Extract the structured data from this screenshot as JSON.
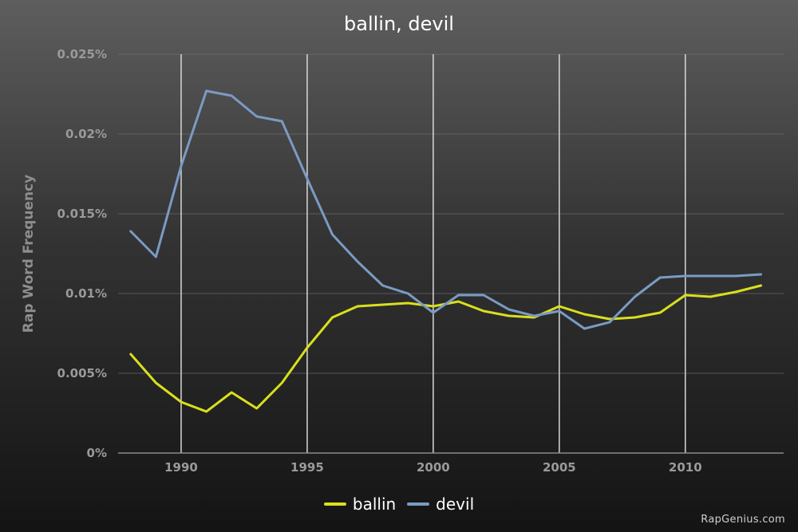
{
  "chart_data": {
    "type": "line",
    "title": "ballin, devil",
    "xlabel": "",
    "ylabel": "Rap Word Frequency",
    "xlim": [
      1987.5,
      2013.9
    ],
    "ylim": [
      0,
      0.025
    ],
    "x_ticks": [
      1990,
      1995,
      2000,
      2005,
      2010
    ],
    "y_ticks": [
      {
        "value": 0,
        "label": "0%"
      },
      {
        "value": 0.005,
        "label": "0.005%"
      },
      {
        "value": 0.01,
        "label": "0.01%"
      },
      {
        "value": 0.015,
        "label": "0.015%"
      },
      {
        "value": 0.02,
        "label": "0.02%"
      },
      {
        "value": 0.025,
        "label": "0.025%"
      }
    ],
    "grid": {
      "vertical": true,
      "horizontal": true
    },
    "legend_position": "bottom-center",
    "x": [
      1988,
      1989,
      1990,
      1991,
      1992,
      1993,
      1994,
      1995,
      1996,
      1997,
      1998,
      1999,
      2000,
      2001,
      2002,
      2003,
      2004,
      2005,
      2006,
      2007,
      2008,
      2009,
      2010,
      2011,
      2012,
      2013
    ],
    "series": [
      {
        "name": "ballin",
        "color": "#d9df1e",
        "values": [
          0.0062,
          0.0044,
          0.0032,
          0.0026,
          0.0038,
          0.0028,
          0.0044,
          0.0066,
          0.0085,
          0.0092,
          0.0093,
          0.0094,
          0.0092,
          0.0095,
          0.0089,
          0.0086,
          0.0085,
          0.0092,
          0.0087,
          0.0084,
          0.0085,
          0.0088,
          0.0099,
          0.0098,
          0.0101,
          0.0105
        ]
      },
      {
        "name": "devil",
        "color": "#7a9bc4",
        "values": [
          0.0139,
          0.0123,
          0.018,
          0.0227,
          0.0224,
          0.0211,
          0.0208,
          0.0172,
          0.0137,
          0.012,
          0.0105,
          0.01,
          0.0088,
          0.0099,
          0.0099,
          0.009,
          0.0086,
          0.0089,
          0.0078,
          0.0082,
          0.0098,
          0.011,
          0.0111,
          0.0111,
          0.0111,
          0.0112
        ]
      }
    ]
  },
  "watermark": "RapGenius.com"
}
